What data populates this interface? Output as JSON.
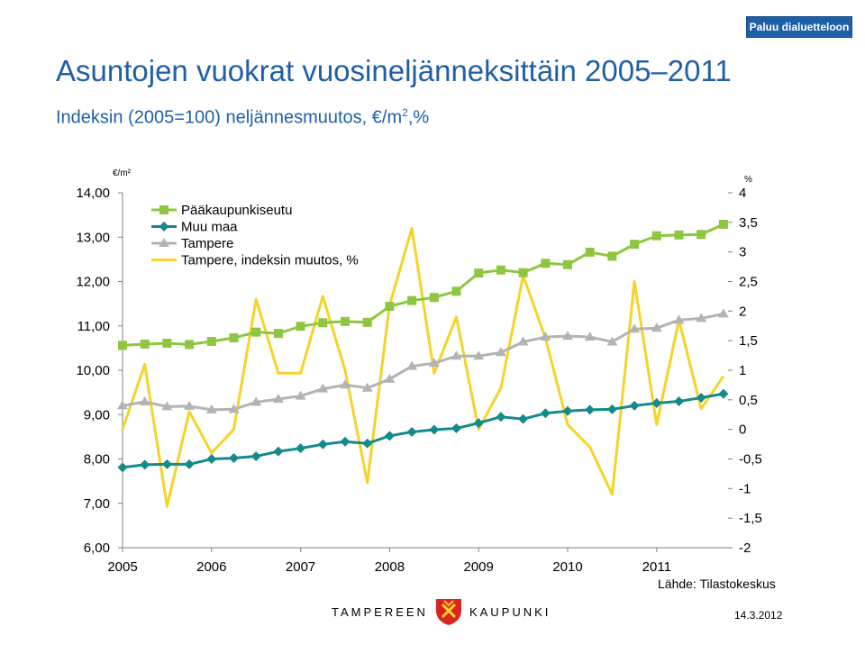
{
  "header": {
    "back_button": "Paluu dialuetteloon",
    "title": "Asuntojen vuokrat vuosineljänneksittäin 2005–2011",
    "subtitle_main": "Indeksin (2005=100) neljännesmuutos, €/m",
    "subtitle_sup": "2",
    "subtitle_tail": ",%"
  },
  "footer": {
    "source": "Lähde: Tilastokeskus",
    "logo_left": "TAMPEREEN",
    "logo_right": "KAUPUNKI",
    "date": "14.3.2012"
  },
  "colors": {
    "title": "#1f5fa8",
    "series_green": "#8dc63f",
    "series_teal": "#158a8a",
    "series_gray": "#b3b3b3",
    "series_yellow": "#f5d328"
  },
  "chart_data": {
    "type": "line",
    "ylabel_left": "€/m²",
    "ylabel_right": "%",
    "ylim_left": [
      6,
      14
    ],
    "ylim_right": [
      -2,
      4
    ],
    "yticks_left": [
      "14,00",
      "13,00",
      "12,00",
      "11,00",
      "10,00",
      "9,00",
      "8,00",
      "7,00",
      "6,00"
    ],
    "yticks_right": [
      "4",
      "3,5",
      "3",
      "2,5",
      "2",
      "1,5",
      "1",
      "0,5",
      "0",
      "-0,5",
      "-1",
      "-1,5",
      "-2"
    ],
    "xticks": [
      "2005",
      "2006",
      "2007",
      "2008",
      "2009",
      "2010",
      "2011"
    ],
    "legend_position": "top-left",
    "grid": false,
    "series": [
      {
        "name": "Pääkaupunkiseutu",
        "axis": "left",
        "marker": "square",
        "color": "#8dc63f",
        "values": [
          10.56,
          10.59,
          10.61,
          10.58,
          10.65,
          10.73,
          10.86,
          10.83,
          10.99,
          11.07,
          11.1,
          11.08,
          11.44,
          11.57,
          11.64,
          11.78,
          12.19,
          12.26,
          12.2,
          12.41,
          12.38,
          12.66,
          12.57,
          12.84,
          13.03,
          13.05,
          13.06,
          13.29
        ]
      },
      {
        "name": "Muu maa",
        "axis": "left",
        "marker": "diamond",
        "color": "#158a8a",
        "values": [
          7.81,
          7.87,
          7.88,
          7.88,
          8.0,
          8.02,
          8.06,
          8.17,
          8.24,
          8.33,
          8.39,
          8.35,
          8.52,
          8.61,
          8.66,
          8.69,
          8.81,
          8.95,
          8.9,
          9.03,
          9.08,
          9.11,
          9.12,
          9.2,
          9.26,
          9.3,
          9.38,
          9.47
        ]
      },
      {
        "name": "Tampere",
        "axis": "left",
        "marker": "triangle",
        "color": "#b3b3b3",
        "values": [
          9.2,
          9.29,
          9.18,
          9.19,
          9.11,
          9.12,
          9.28,
          9.35,
          9.42,
          9.58,
          9.67,
          9.6,
          9.8,
          10.09,
          10.16,
          10.32,
          10.32,
          10.4,
          10.64,
          10.75,
          10.77,
          10.75,
          10.64,
          10.93,
          10.95,
          11.13,
          11.17,
          11.27
        ]
      },
      {
        "name": "Tampere, indeksin muutos, %",
        "axis": "right",
        "marker": "none",
        "color": "#f5d328",
        "values": [
          0.0,
          1.1,
          -1.3,
          0.3,
          -0.4,
          0.0,
          2.2,
          0.95,
          0.95,
          2.25,
          1.0,
          -0.9,
          2.1,
          3.4,
          0.95,
          1.9,
          0.0,
          0.7,
          2.6,
          1.55,
          0.08,
          -0.3,
          -1.1,
          2.5,
          0.08,
          1.85,
          0.35,
          0.9
        ]
      }
    ]
  }
}
